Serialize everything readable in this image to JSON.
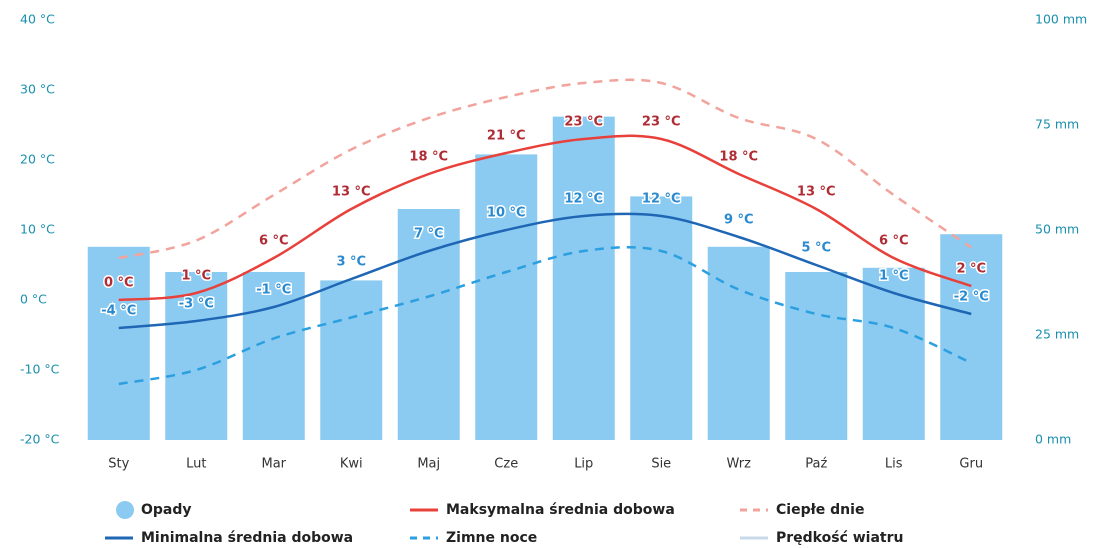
{
  "chart_data": {
    "type": "bar",
    "categories": [
      "Sty",
      "Lut",
      "Mar",
      "Kwi",
      "Maj",
      "Cze",
      "Lip",
      "Sie",
      "Wrz",
      "Paź",
      "Lis",
      "Gru"
    ],
    "ylim": [
      -20,
      40
    ],
    "yticks": [
      {
        "value": -20,
        "label": "-20 °C"
      },
      {
        "value": -10,
        "label": "-10 °C"
      },
      {
        "value": 0,
        "label": "0 °C"
      },
      {
        "value": 10,
        "label": "10 °C"
      },
      {
        "value": 20,
        "label": "20 °C"
      },
      {
        "value": 30,
        "label": "30 °C"
      },
      {
        "value": 40,
        "label": "40 °C"
      }
    ],
    "y2lim": [
      0,
      100
    ],
    "y2ticks": [
      {
        "value": 0,
        "label": "0 mm"
      },
      {
        "value": 25,
        "label": "25 mm"
      },
      {
        "value": 50,
        "label": "50 mm"
      },
      {
        "value": 75,
        "label": "75 mm"
      },
      {
        "value": 100,
        "label": "100 mm"
      }
    ],
    "grid": false,
    "series": [
      {
        "name": "Opady",
        "type": "bar",
        "axis": "y2",
        "color": "#8ccbf1",
        "values": [
          46,
          40,
          40,
          38,
          55,
          68,
          77,
          58,
          46,
          40,
          41,
          49
        ]
      },
      {
        "name": "Maksymalna średnia dobowa",
        "type": "line",
        "color": "#e8403a",
        "label_color": "#b02c34",
        "values": [
          0,
          1,
          6,
          13,
          18,
          21,
          23,
          23,
          18,
          13,
          6,
          2
        ],
        "value_labels": [
          "0 °C",
          "1 °C",
          "6 °C",
          "13 °C",
          "18 °C",
          "21 °C",
          "23 °C",
          "23 °C",
          "18 °C",
          "13 °C",
          "6 °C",
          "2 °C"
        ]
      },
      {
        "name": "Ciepłe dnie",
        "type": "line",
        "dashed": true,
        "color": "#f2a39c",
        "values": [
          6,
          8.5,
          15,
          21.5,
          26,
          29,
          31,
          31,
          26,
          23,
          15,
          7.5
        ]
      },
      {
        "name": "Minimalna średnia dobowa",
        "type": "line",
        "color": "#1f66b5",
        "label_color": "#2a8ad0",
        "values": [
          -4,
          -3,
          -1,
          3,
          7,
          10,
          12,
          12,
          9,
          5,
          1,
          -2
        ],
        "value_labels": [
          "-4 °C",
          "-3 °C",
          "-1 °C",
          "3 °C",
          "7 °C",
          "10 °C",
          "12 °C",
          "12 °C",
          "9 °C",
          "5 °C",
          "1 °C",
          "-2 °C"
        ]
      },
      {
        "name": "Zimne noce",
        "type": "line",
        "dashed": true,
        "color": "#2c9fe0",
        "values": [
          -12,
          -10,
          -5.5,
          -2.5,
          0.5,
          4,
          7,
          7,
          1.5,
          -2,
          -4,
          -9
        ]
      },
      {
        "name": "Prędkość wiatru",
        "type": "line",
        "color": "#c9d9e8",
        "values": [
          null,
          null,
          null,
          null,
          null,
          null,
          null,
          null,
          null,
          null,
          null,
          null
        ]
      }
    ]
  }
}
